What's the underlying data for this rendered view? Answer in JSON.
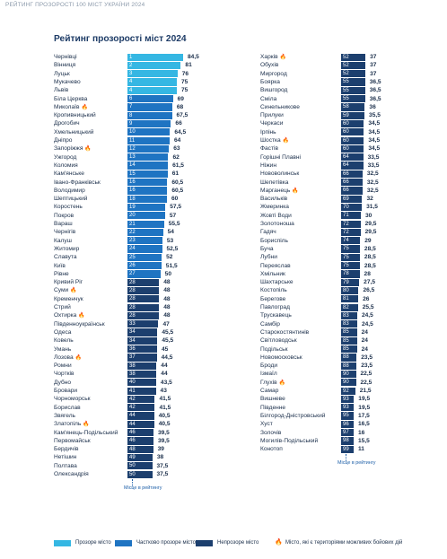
{
  "header": {
    "text": "РЕЙТИНГ ПРОЗОРОСТІ 100 МІСТ УКРАЇНИ 2024"
  },
  "title": "Рейтинг прозорості міст 2024",
  "colors": {
    "transparent": "#35b7e3",
    "partial": "#1f74c2",
    "nontransparent": "#1c3f6e",
    "fire": "#f59a1b"
  },
  "max_score": 84.5,
  "rank_note": "Місце в рейтингу",
  "legend": [
    {
      "label": "Прозоре місто",
      "category": "transparent"
    },
    {
      "label": "Частково прозоре місто",
      "category": "partial"
    },
    {
      "label": "Непрозоре місто",
      "category": "nontransparent"
    },
    {
      "label": "Місто, які є територіями можливих бойових дій",
      "category": "fire"
    }
  ],
  "left_column": [
    {
      "name": "Чернівці",
      "rank": "1",
      "score": "84,5",
      "value": 84.5,
      "category": "transparent",
      "fire": false
    },
    {
      "name": "Вінниця",
      "rank": "2",
      "score": "81",
      "value": 81,
      "category": "transparent",
      "fire": false
    },
    {
      "name": "Луцьк",
      "rank": "3",
      "score": "76",
      "value": 76,
      "category": "transparent",
      "fire": false
    },
    {
      "name": "Мукачево",
      "rank": "4",
      "score": "75",
      "value": 75,
      "category": "transparent",
      "fire": false
    },
    {
      "name": "Львів",
      "rank": "4",
      "score": "75",
      "value": 75,
      "category": "transparent",
      "fire": false
    },
    {
      "name": "Біла Церква",
      "rank": "6",
      "score": "69",
      "value": 69,
      "category": "partial",
      "fire": false
    },
    {
      "name": "Миколаїв",
      "rank": "7",
      "score": "68",
      "value": 68,
      "category": "partial",
      "fire": true
    },
    {
      "name": "Кропивницький",
      "rank": "8",
      "score": "67,5",
      "value": 67.5,
      "category": "partial",
      "fire": false
    },
    {
      "name": "Дрогобич",
      "rank": "9",
      "score": "66",
      "value": 66,
      "category": "partial",
      "fire": false
    },
    {
      "name": "Хмельницький",
      "rank": "10",
      "score": "64,5",
      "value": 64.5,
      "category": "partial",
      "fire": false
    },
    {
      "name": "Дніпро",
      "rank": "11",
      "score": "64",
      "value": 64,
      "category": "partial",
      "fire": false
    },
    {
      "name": "Запоріжжя",
      "rank": "12",
      "score": "63",
      "value": 63,
      "category": "partial",
      "fire": true
    },
    {
      "name": "Ужгород",
      "rank": "13",
      "score": "62",
      "value": 62,
      "category": "partial",
      "fire": false
    },
    {
      "name": "Коломия",
      "rank": "14",
      "score": "61,5",
      "value": 61.5,
      "category": "partial",
      "fire": false
    },
    {
      "name": "Кам'янське",
      "rank": "15",
      "score": "61",
      "value": 61,
      "category": "partial",
      "fire": false
    },
    {
      "name": "Івано-Франківськ",
      "rank": "16",
      "score": "60,5",
      "value": 60.5,
      "category": "partial",
      "fire": false
    },
    {
      "name": "Володимир",
      "rank": "16",
      "score": "60,5",
      "value": 60.5,
      "category": "partial",
      "fire": false
    },
    {
      "name": "Шептицький",
      "rank": "18",
      "score": "60",
      "value": 60,
      "category": "partial",
      "fire": false
    },
    {
      "name": "Коростень",
      "rank": "19",
      "score": "57,5",
      "value": 57.5,
      "category": "partial",
      "fire": false
    },
    {
      "name": "Покров",
      "rank": "20",
      "score": "57",
      "value": 57,
      "category": "partial",
      "fire": false
    },
    {
      "name": "Вараш",
      "rank": "21",
      "score": "55,5",
      "value": 55.5,
      "category": "partial",
      "fire": false
    },
    {
      "name": "Чернігів",
      "rank": "22",
      "score": "54",
      "value": 54,
      "category": "partial",
      "fire": false
    },
    {
      "name": "Калуш",
      "rank": "23",
      "score": "53",
      "value": 53,
      "category": "partial",
      "fire": false
    },
    {
      "name": "Житомир",
      "rank": "24",
      "score": "52,5",
      "value": 52.5,
      "category": "partial",
      "fire": false
    },
    {
      "name": "Славута",
      "rank": "25",
      "score": "52",
      "value": 52,
      "category": "partial",
      "fire": false
    },
    {
      "name": "Київ",
      "rank": "26",
      "score": "51,5",
      "value": 51.5,
      "category": "partial",
      "fire": false
    },
    {
      "name": "Рівне",
      "rank": "27",
      "score": "50",
      "value": 50,
      "category": "partial",
      "fire": false
    },
    {
      "name": "Кривий Ріг",
      "rank": "28",
      "score": "48",
      "value": 48,
      "category": "nontransparent",
      "fire": false
    },
    {
      "name": "Суми",
      "rank": "28",
      "score": "48",
      "value": 48,
      "category": "nontransparent",
      "fire": true
    },
    {
      "name": "Кременчук",
      "rank": "28",
      "score": "48",
      "value": 48,
      "category": "nontransparent",
      "fire": false
    },
    {
      "name": "Стрий",
      "rank": "28",
      "score": "48",
      "value": 48,
      "category": "nontransparent",
      "fire": false
    },
    {
      "name": "Охтирка",
      "rank": "28",
      "score": "48",
      "value": 48,
      "category": "nontransparent",
      "fire": true
    },
    {
      "name": "Південноукраїнськ",
      "rank": "33",
      "score": "47",
      "value": 47,
      "category": "nontransparent",
      "fire": false
    },
    {
      "name": "Одеса",
      "rank": "34",
      "score": "45,5",
      "value": 45.5,
      "category": "nontransparent",
      "fire": false
    },
    {
      "name": "Ковель",
      "rank": "34",
      "score": "45,5",
      "value": 45.5,
      "category": "nontransparent",
      "fire": false
    },
    {
      "name": "Умань",
      "rank": "36",
      "score": "45",
      "value": 45,
      "category": "nontransparent",
      "fire": false
    },
    {
      "name": "Лозова",
      "rank": "37",
      "score": "44,5",
      "value": 44.5,
      "category": "nontransparent",
      "fire": true
    },
    {
      "name": "Ромни",
      "rank": "38",
      "score": "44",
      "value": 44,
      "category": "nontransparent",
      "fire": false
    },
    {
      "name": "Чортків",
      "rank": "38",
      "score": "44",
      "value": 44,
      "category": "nontransparent",
      "fire": false
    },
    {
      "name": "Дубно",
      "rank": "40",
      "score": "43,5",
      "value": 43.5,
      "category": "nontransparent",
      "fire": false
    },
    {
      "name": "Бровари",
      "rank": "41",
      "score": "43",
      "value": 43,
      "category": "nontransparent",
      "fire": false
    },
    {
      "name": "Чорноморськ",
      "rank": "42",
      "score": "41,5",
      "value": 41.5,
      "category": "nontransparent",
      "fire": false
    },
    {
      "name": "Борислав",
      "rank": "42",
      "score": "41,5",
      "value": 41.5,
      "category": "nontransparent",
      "fire": false
    },
    {
      "name": "Звягель",
      "rank": "44",
      "score": "40,5",
      "value": 40.5,
      "category": "nontransparent",
      "fire": false
    },
    {
      "name": "Златопіль",
      "rank": "44",
      "score": "40,5",
      "value": 40.5,
      "category": "nontransparent",
      "fire": true
    },
    {
      "name": "Кам'янець-Подільський",
      "rank": "46",
      "score": "39,5",
      "value": 39.5,
      "category": "nontransparent",
      "fire": false
    },
    {
      "name": "Первомайськ",
      "rank": "46",
      "score": "39,5",
      "value": 39.5,
      "category": "nontransparent",
      "fire": false
    },
    {
      "name": "Бердичів",
      "rank": "48",
      "score": "39",
      "value": 39,
      "category": "nontransparent",
      "fire": false
    },
    {
      "name": "Нетішин",
      "rank": "49",
      "score": "38",
      "value": 38,
      "category": "nontransparent",
      "fire": false
    },
    {
      "name": "Полтава",
      "rank": "50",
      "score": "37,5",
      "value": 37.5,
      "category": "nontransparent",
      "fire": false
    },
    {
      "name": "Олександрія",
      "rank": "50",
      "score": "37,5",
      "value": 37.5,
      "category": "nontransparent",
      "fire": false
    }
  ],
  "right_column": [
    {
      "name": "Харків",
      "rank": "52",
      "score": "37",
      "value": 37,
      "category": "nontransparent",
      "fire": true
    },
    {
      "name": "Обухів",
      "rank": "52",
      "score": "37",
      "value": 37,
      "category": "nontransparent",
      "fire": false
    },
    {
      "name": "Миргород",
      "rank": "52",
      "score": "37",
      "value": 37,
      "category": "nontransparent",
      "fire": false
    },
    {
      "name": "Боярка",
      "rank": "55",
      "score": "36,5",
      "value": 36.5,
      "category": "nontransparent",
      "fire": false
    },
    {
      "name": "Вишгород",
      "rank": "55",
      "score": "36,5",
      "value": 36.5,
      "category": "nontransparent",
      "fire": false
    },
    {
      "name": "Сміла",
      "rank": "55",
      "score": "36,5",
      "value": 36.5,
      "category": "nontransparent",
      "fire": false
    },
    {
      "name": "Синельникове",
      "rank": "58",
      "score": "36",
      "value": 36,
      "category": "nontransparent",
      "fire": false
    },
    {
      "name": "Прилуки",
      "rank": "59",
      "score": "35,5",
      "value": 35.5,
      "category": "nontransparent",
      "fire": false
    },
    {
      "name": "Черкаси",
      "rank": "60",
      "score": "34,5",
      "value": 34.5,
      "category": "nontransparent",
      "fire": false
    },
    {
      "name": "Ірпінь",
      "rank": "60",
      "score": "34,5",
      "value": 34.5,
      "category": "nontransparent",
      "fire": false
    },
    {
      "name": "Шостка",
      "rank": "60",
      "score": "34,5",
      "value": 34.5,
      "category": "nontransparent",
      "fire": true
    },
    {
      "name": "Фастів",
      "rank": "60",
      "score": "34,5",
      "value": 34.5,
      "category": "nontransparent",
      "fire": false
    },
    {
      "name": "Горішні Плавні",
      "rank": "64",
      "score": "33,5",
      "value": 33.5,
      "category": "nontransparent",
      "fire": false
    },
    {
      "name": "Ніжин",
      "rank": "64",
      "score": "33,5",
      "value": 33.5,
      "category": "nontransparent",
      "fire": false
    },
    {
      "name": "Нововолинськ",
      "rank": "66",
      "score": "32,5",
      "value": 32.5,
      "category": "nontransparent",
      "fire": false
    },
    {
      "name": "Шепетівка",
      "rank": "66",
      "score": "32,5",
      "value": 32.5,
      "category": "nontransparent",
      "fire": false
    },
    {
      "name": "Марганець",
      "rank": "66",
      "score": "32,5",
      "value": 32.5,
      "category": "nontransparent",
      "fire": true
    },
    {
      "name": "Васильків",
      "rank": "69",
      "score": "32",
      "value": 32,
      "category": "nontransparent",
      "fire": false
    },
    {
      "name": "Жмеринка",
      "rank": "70",
      "score": "31,5",
      "value": 31.5,
      "category": "nontransparent",
      "fire": false
    },
    {
      "name": "Жовті Води",
      "rank": "71",
      "score": "30",
      "value": 30,
      "category": "nontransparent",
      "fire": false
    },
    {
      "name": "Золотоноша",
      "rank": "72",
      "score": "29,5",
      "value": 29.5,
      "category": "nontransparent",
      "fire": false
    },
    {
      "name": "Гадяч",
      "rank": "72",
      "score": "29,5",
      "value": 29.5,
      "category": "nontransparent",
      "fire": false
    },
    {
      "name": "Бориспіль",
      "rank": "74",
      "score": "29",
      "value": 29,
      "category": "nontransparent",
      "fire": false
    },
    {
      "name": "Буча",
      "rank": "75",
      "score": "28,5",
      "value": 28.5,
      "category": "nontransparent",
      "fire": false
    },
    {
      "name": "Лубни",
      "rank": "75",
      "score": "28,5",
      "value": 28.5,
      "category": "nontransparent",
      "fire": false
    },
    {
      "name": "Переяслав",
      "rank": "75",
      "score": "28,5",
      "value": 28.5,
      "category": "nontransparent",
      "fire": false
    },
    {
      "name": "Хмільник",
      "rank": "78",
      "score": "28",
      "value": 28,
      "category": "nontransparent",
      "fire": false
    },
    {
      "name": "Шахтарське",
      "rank": "79",
      "score": "27,5",
      "value": 27.5,
      "category": "nontransparent",
      "fire": false
    },
    {
      "name": "Костопіль",
      "rank": "80",
      "score": "26,5",
      "value": 26.5,
      "category": "nontransparent",
      "fire": false
    },
    {
      "name": "Берегове",
      "rank": "81",
      "score": "26",
      "value": 26,
      "category": "nontransparent",
      "fire": false
    },
    {
      "name": "Павлоград",
      "rank": "82",
      "score": "25,5",
      "value": 25.5,
      "category": "nontransparent",
      "fire": false
    },
    {
      "name": "Трускавець",
      "rank": "83",
      "score": "24,5",
      "value": 24.5,
      "category": "nontransparent",
      "fire": false
    },
    {
      "name": "Самбір",
      "rank": "83",
      "score": "24,5",
      "value": 24.5,
      "category": "nontransparent",
      "fire": false
    },
    {
      "name": "Старокостянтинів",
      "rank": "85",
      "score": "24",
      "value": 24,
      "category": "nontransparent",
      "fire": false
    },
    {
      "name": "Світловодськ",
      "rank": "85",
      "score": "24",
      "value": 24,
      "category": "nontransparent",
      "fire": false
    },
    {
      "name": "Подільськ",
      "rank": "85",
      "score": "24",
      "value": 24,
      "category": "nontransparent",
      "fire": false
    },
    {
      "name": "Новомосковськ",
      "rank": "88",
      "score": "23,5",
      "value": 23.5,
      "category": "nontransparent",
      "fire": false
    },
    {
      "name": "Броди",
      "rank": "88",
      "score": "23,5",
      "value": 23.5,
      "category": "nontransparent",
      "fire": false
    },
    {
      "name": "Ізмаїл",
      "rank": "90",
      "score": "22,5",
      "value": 22.5,
      "category": "nontransparent",
      "fire": false
    },
    {
      "name": "Глухів",
      "rank": "90",
      "score": "22,5",
      "value": 22.5,
      "category": "nontransparent",
      "fire": true
    },
    {
      "name": "Самар",
      "rank": "92",
      "score": "21,5",
      "value": 21.5,
      "category": "nontransparent",
      "fire": false
    },
    {
      "name": "Вишневе",
      "rank": "93",
      "score": "19,5",
      "value": 19.5,
      "category": "nontransparent",
      "fire": false
    },
    {
      "name": "Південне",
      "rank": "93",
      "score": "19,5",
      "value": 19.5,
      "category": "nontransparent",
      "fire": false
    },
    {
      "name": "Білгород-Дністровський",
      "rank": "95",
      "score": "17,5",
      "value": 17.5,
      "category": "nontransparent",
      "fire": false
    },
    {
      "name": "Хуст",
      "rank": "96",
      "score": "16,5",
      "value": 16.5,
      "category": "nontransparent",
      "fire": false
    },
    {
      "name": "Золочів",
      "rank": "97",
      "score": "16",
      "value": 16,
      "category": "nontransparent",
      "fire": false
    },
    {
      "name": "Могилів-Подільський",
      "rank": "98",
      "score": "15,5",
      "value": 15.5,
      "category": "nontransparent",
      "fire": false
    },
    {
      "name": "Конотоп",
      "rank": "99",
      "score": "11",
      "value": 11,
      "category": "nontransparent",
      "fire": false
    }
  ]
}
